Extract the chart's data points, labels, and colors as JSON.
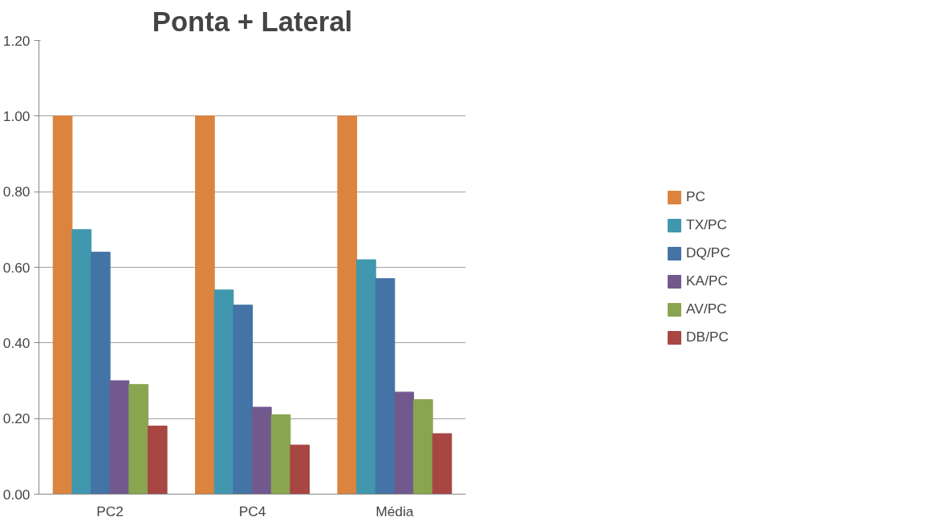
{
  "chart_data": {
    "type": "bar",
    "title": "Ponta + Lateral",
    "categories": [
      "PC2",
      "PC4",
      "Média"
    ],
    "series": [
      {
        "name": "PC",
        "color": "#dc843e",
        "values": [
          1.0,
          1.0,
          1.0
        ]
      },
      {
        "name": "TX/PC",
        "color": "#4197ae",
        "values": [
          0.7,
          0.54,
          0.62
        ]
      },
      {
        "name": "DQ/PC",
        "color": "#4473a6",
        "values": [
          0.64,
          0.5,
          0.57
        ]
      },
      {
        "name": "KA/PC",
        "color": "#71598e",
        "values": [
          0.3,
          0.23,
          0.27
        ]
      },
      {
        "name": "AV/PC",
        "color": "#8aa54f",
        "values": [
          0.29,
          0.21,
          0.25
        ]
      },
      {
        "name": "DB/PC",
        "color": "#a84644",
        "values": [
          0.18,
          0.13,
          0.16
        ]
      }
    ],
    "ylim": [
      0,
      1.2
    ],
    "yticks": [
      {
        "value": 0,
        "label": "0.00"
      },
      {
        "value": 0.2,
        "label": "0.20"
      },
      {
        "value": 0.4,
        "label": "0.40"
      },
      {
        "value": 0.6,
        "label": "0.60"
      },
      {
        "value": 0.8,
        "label": "0.80"
      },
      {
        "value": 1.0,
        "label": "1.00"
      },
      {
        "value": 1.2,
        "label": "1.20"
      }
    ],
    "grid": "y",
    "legend": "right"
  }
}
